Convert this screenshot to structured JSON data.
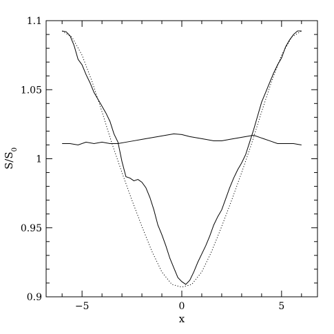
{
  "chart_data": {
    "type": "line",
    "xlabel": "x",
    "ylabel_main": "S/S",
    "ylabel_sub": "0",
    "xlim": [
      -6.8,
      6.8
    ],
    "ylim": [
      0.9,
      1.1
    ],
    "xticks": [
      -5,
      0,
      5
    ],
    "xtick_labels": [
      "−5",
      "0",
      "5"
    ],
    "yticks": [
      0.9,
      0.95,
      1.0,
      1.05,
      1.1
    ],
    "ytick_labels": [
      "0.9",
      "0.95",
      "1",
      "1.05",
      "1.1"
    ],
    "grid": false,
    "series": [
      {
        "style": "solid",
        "x": [
          -6.0,
          -5.8,
          -5.6,
          -5.4,
          -5.2,
          -5.0,
          -4.8,
          -4.6,
          -4.4,
          -4.2,
          -4.0,
          -3.8,
          -3.6,
          -3.4,
          -3.2,
          -3.0,
          -2.8,
          -2.6,
          -2.4,
          -2.2,
          -2.0,
          -1.8,
          -1.6,
          -1.4,
          -1.2,
          -1.0,
          -0.8,
          -0.6,
          -0.4,
          -0.2,
          0.0,
          0.2,
          0.4,
          0.6,
          0.8,
          1.0,
          1.2,
          1.4,
          1.6,
          1.8,
          2.0,
          2.2,
          2.4,
          2.6,
          2.8,
          3.0,
          3.2,
          3.4,
          3.6,
          3.8,
          4.0,
          4.2,
          4.4,
          4.6,
          4.8,
          5.0,
          5.2,
          5.4,
          5.6,
          5.8,
          6.0
        ],
        "y": [
          1.0925,
          1.092,
          1.089,
          1.082,
          1.072,
          1.068,
          1.061,
          1.055,
          1.048,
          1.043,
          1.038,
          1.033,
          1.027,
          1.018,
          1.012,
          0.998,
          0.987,
          0.986,
          0.984,
          0.985,
          0.983,
          0.979,
          0.972,
          0.963,
          0.952,
          0.945,
          0.937,
          0.928,
          0.921,
          0.914,
          0.911,
          0.909,
          0.912,
          0.918,
          0.925,
          0.931,
          0.937,
          0.944,
          0.952,
          0.958,
          0.963,
          0.971,
          0.979,
          0.986,
          0.992,
          0.997,
          1.003,
          1.012,
          1.021,
          1.031,
          1.041,
          1.048,
          1.055,
          1.062,
          1.068,
          1.073,
          1.081,
          1.086,
          1.09,
          1.0925,
          1.0925
        ]
      },
      {
        "style": "solid",
        "x": [
          -6.0,
          -5.6,
          -5.2,
          -4.8,
          -4.4,
          -4.0,
          -3.6,
          -3.2,
          -2.8,
          -2.4,
          -2.0,
          -1.6,
          -1.2,
          -0.8,
          -0.4,
          0.0,
          0.4,
          0.8,
          1.2,
          1.6,
          2.0,
          2.4,
          2.8,
          3.2,
          3.6,
          4.0,
          4.4,
          4.8,
          5.2,
          5.6,
          6.0
        ],
        "y": [
          1.011,
          1.011,
          1.01,
          1.012,
          1.011,
          1.012,
          1.011,
          1.011,
          1.012,
          1.013,
          1.014,
          1.015,
          1.016,
          1.017,
          1.018,
          1.0175,
          1.016,
          1.015,
          1.014,
          1.013,
          1.013,
          1.014,
          1.015,
          1.016,
          1.017,
          1.015,
          1.013,
          1.011,
          1.011,
          1.011,
          1.01
        ]
      },
      {
        "style": "dotted",
        "x": [
          -6.0,
          -5.5,
          -5.0,
          -4.5,
          -4.0,
          -3.5,
          -3.0,
          -2.5,
          -2.0,
          -1.5,
          -1.0,
          -0.5,
          0.0,
          0.5,
          1.0,
          1.5,
          2.0,
          2.5,
          3.0,
          3.5,
          4.0,
          4.5,
          5.0,
          5.5,
          6.0
        ],
        "y": [
          1.0925,
          1.088,
          1.075,
          1.056,
          1.034,
          1.011,
          0.99,
          0.97,
          0.951,
          0.933,
          0.918,
          0.909,
          0.907,
          0.909,
          0.918,
          0.933,
          0.951,
          0.97,
          0.99,
          1.011,
          1.034,
          1.056,
          1.075,
          1.088,
          1.0925
        ]
      }
    ]
  }
}
